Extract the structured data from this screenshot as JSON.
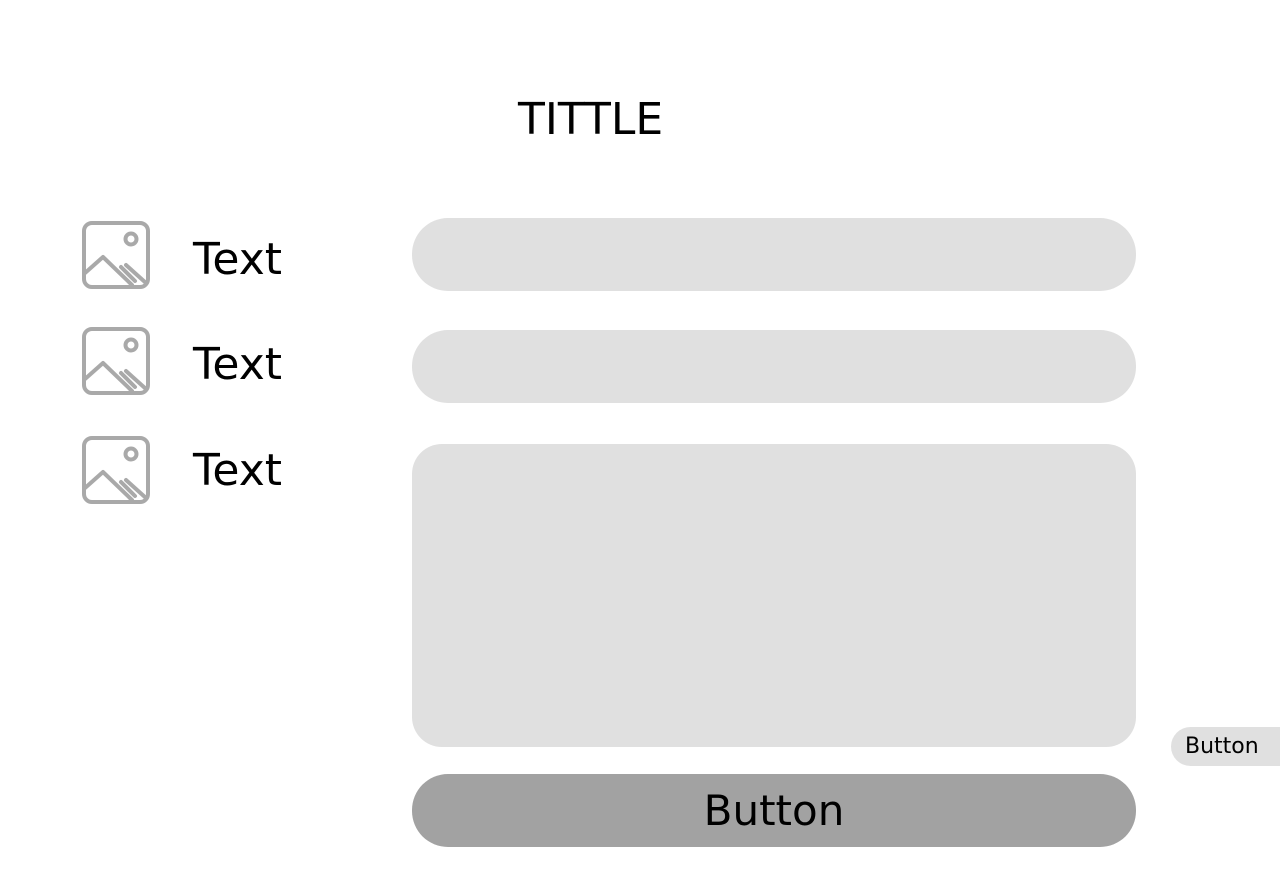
{
  "header": {
    "title": "TITTLE"
  },
  "rows": [
    {
      "icon": "image-placeholder-icon",
      "label": "Text"
    },
    {
      "icon": "image-placeholder-icon",
      "label": "Text"
    },
    {
      "icon": "image-placeholder-icon",
      "label": "Text"
    }
  ],
  "form": {
    "field_1_value": "",
    "field_2_value": "",
    "field_3_value": ""
  },
  "actions": {
    "main_button_label": "Button",
    "side_button_label": "Button"
  },
  "colors": {
    "field_fill": "#e0e0e0",
    "button_fill": "#a2a2a2",
    "icon_stroke": "#a9a9a9",
    "text": "#000000"
  }
}
